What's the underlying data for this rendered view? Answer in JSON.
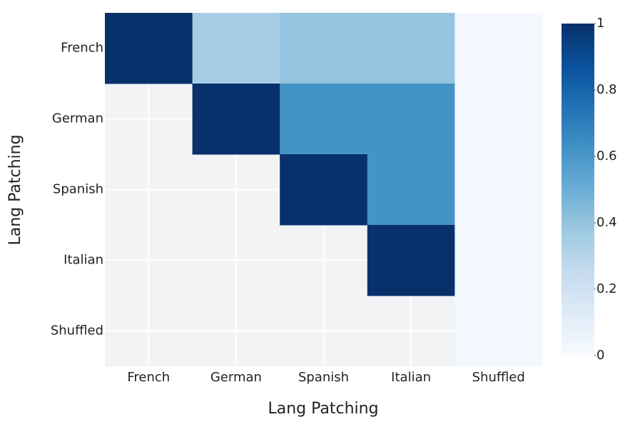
{
  "chart_data": {
    "type": "heatmap",
    "x_label": "Lang Patching",
    "y_label": "Lang Patching",
    "x_categories": [
      "French",
      "German",
      "Spanish",
      "Italian",
      "Shuffled"
    ],
    "y_categories": [
      "French",
      "German",
      "Spanish",
      "Italian",
      "Shuffled"
    ],
    "z": [
      [
        1,
        0.35,
        0.4,
        0.4,
        0.02
      ],
      [
        null,
        1,
        0.62,
        0.62,
        0.02
      ],
      [
        null,
        null,
        1,
        0.62,
        0.02
      ],
      [
        null,
        null,
        null,
        1,
        0.02
      ],
      [
        null,
        null,
        null,
        null,
        0.02
      ]
    ],
    "zlim": [
      0,
      1
    ],
    "zticks": [
      0,
      0.2,
      0.4,
      0.6,
      0.8,
      1
    ],
    "colorscale": [
      "#f7fbff",
      "#deebf7",
      "#c6dbef",
      "#9ecae1",
      "#6baed6",
      "#4292c6",
      "#2171b5",
      "#08519c",
      "#08306b"
    ],
    "grid": true
  }
}
